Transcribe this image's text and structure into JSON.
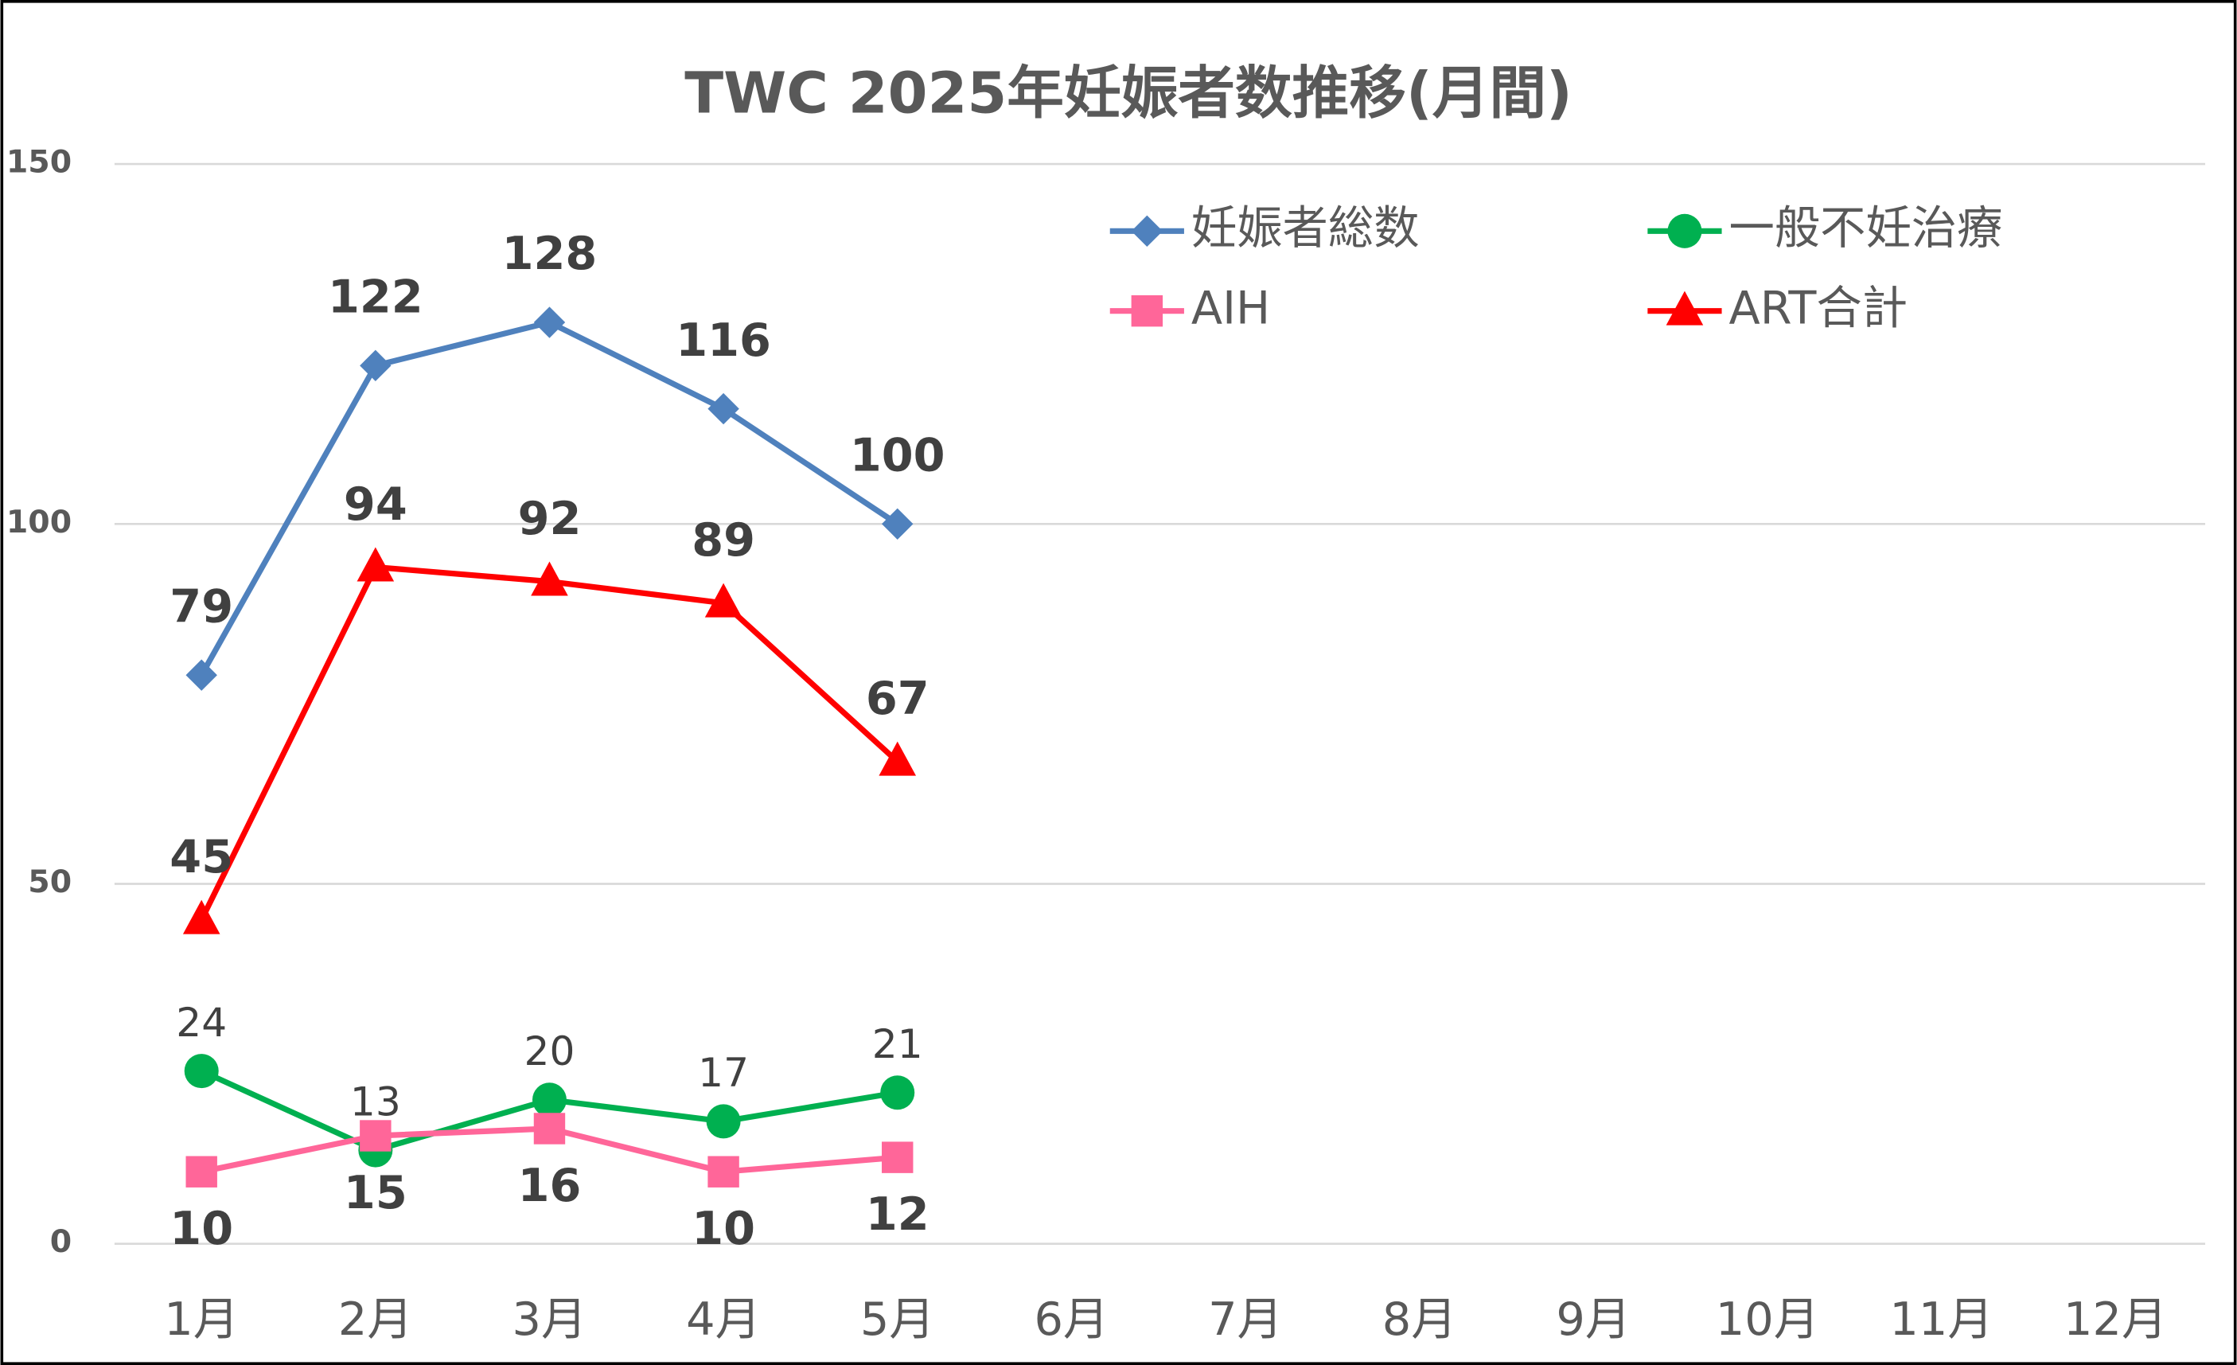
{
  "chart_data": {
    "type": "line",
    "title": "TWC 2025年妊娠者数推移(月間)",
    "categories": [
      "1月",
      "2月",
      "3月",
      "4月",
      "5月",
      "6月",
      "7月",
      "8月",
      "9月",
      "10月",
      "11月",
      "12月"
    ],
    "series": [
      {
        "name": "妊娠者総数",
        "color": "#4f81bd",
        "marker": "diamond",
        "values": [
          79,
          122,
          128,
          116,
          100,
          null,
          null,
          null,
          null,
          null,
          null,
          null
        ]
      },
      {
        "name": "一般不妊治療",
        "color": "#00b050",
        "marker": "circle",
        "values": [
          24,
          13,
          20,
          17,
          21,
          null,
          null,
          null,
          null,
          null,
          null,
          null
        ]
      },
      {
        "name": "AIH",
        "color": "#ff6699",
        "marker": "square",
        "values": [
          10,
          15,
          16,
          10,
          12,
          null,
          null,
          null,
          null,
          null,
          null,
          null
        ]
      },
      {
        "name": "ART合計",
        "color": "#ff0000",
        "marker": "triangle",
        "values": [
          45,
          94,
          92,
          89,
          67,
          null,
          null,
          null,
          null,
          null,
          null,
          null
        ]
      }
    ],
    "ylim": [
      0,
      150
    ],
    "yticks": [
      0,
      50,
      100,
      150
    ],
    "grid": true,
    "legend": "top-right"
  }
}
